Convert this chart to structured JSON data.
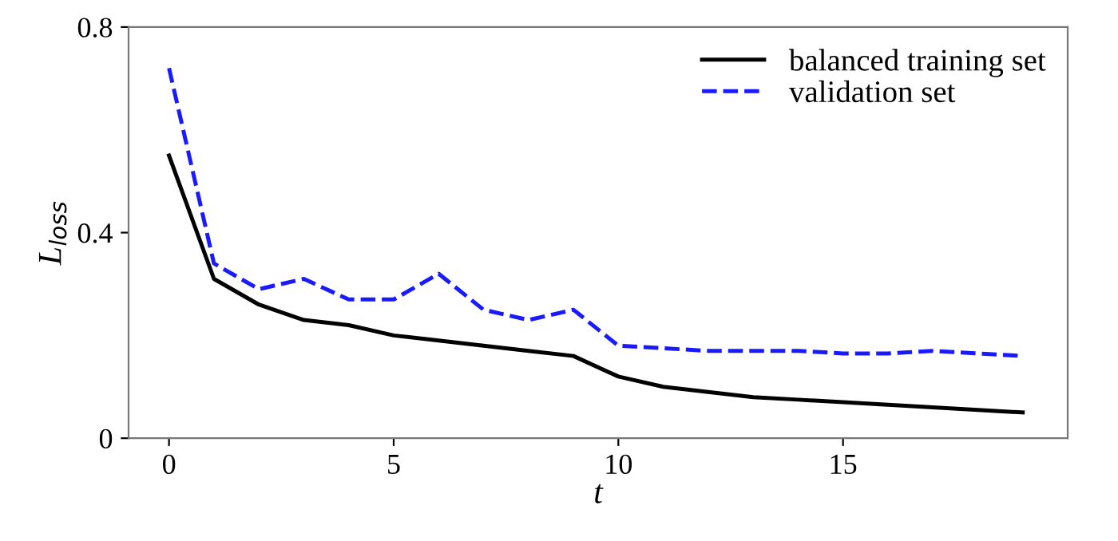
{
  "chart_data": {
    "type": "line",
    "xlabel": "t",
    "ylabel": "L$_{loss}$",
    "x": [
      0,
      1,
      2,
      3,
      4,
      5,
      6,
      7,
      8,
      9,
      10,
      11,
      12,
      13,
      14,
      15,
      16,
      17,
      18,
      19
    ],
    "series": [
      {
        "name": "balanced training set",
        "color": "#000000",
        "line_style": "solid",
        "values": [
          0.55,
          0.31,
          0.26,
          0.23,
          0.22,
          0.2,
          0.19,
          0.18,
          0.17,
          0.16,
          0.12,
          0.1,
          0.09,
          0.08,
          0.075,
          0.07,
          0.065,
          0.06,
          0.055,
          0.05
        ]
      },
      {
        "name": "validation set",
        "color": "#1a1aff",
        "line_style": "dashed",
        "values": [
          0.72,
          0.34,
          0.29,
          0.31,
          0.27,
          0.27,
          0.32,
          0.25,
          0.23,
          0.25,
          0.18,
          0.175,
          0.17,
          0.17,
          0.17,
          0.165,
          0.165,
          0.17,
          0.165,
          0.16
        ]
      }
    ],
    "xlim": [
      -0.9,
      20
    ],
    "ylim": [
      0,
      0.8
    ],
    "xticks": [
      0,
      5,
      10,
      15
    ],
    "yticks": [
      0,
      0.4,
      0.8
    ],
    "grid": false,
    "legend": "top right",
    "marker": "none"
  }
}
